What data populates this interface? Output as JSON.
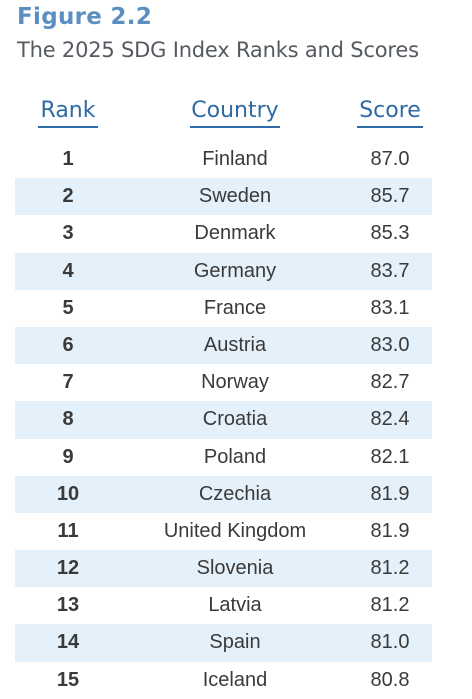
{
  "figure": {
    "label": "Figure 2.2",
    "title": "The 2025 SDG Index Ranks and Scores"
  },
  "table": {
    "headers": {
      "rank": "Rank",
      "country": "Country",
      "score": "Score"
    },
    "rows": [
      {
        "rank": "1",
        "country": "Finland",
        "score": "87.0"
      },
      {
        "rank": "2",
        "country": "Sweden",
        "score": "85.7"
      },
      {
        "rank": "3",
        "country": "Denmark",
        "score": "85.3"
      },
      {
        "rank": "4",
        "country": "Germany",
        "score": "83.7"
      },
      {
        "rank": "5",
        "country": "France",
        "score": "83.1"
      },
      {
        "rank": "6",
        "country": "Austria",
        "score": "83.0"
      },
      {
        "rank": "7",
        "country": "Norway",
        "score": "82.7"
      },
      {
        "rank": "8",
        "country": "Croatia",
        "score": "82.4"
      },
      {
        "rank": "9",
        "country": "Poland",
        "score": "82.1"
      },
      {
        "rank": "10",
        "country": "Czechia",
        "score": "81.9"
      },
      {
        "rank": "11",
        "country": "United Kingdom",
        "score": "81.9"
      },
      {
        "rank": "12",
        "country": "Slovenia",
        "score": "81.2"
      },
      {
        "rank": "13",
        "country": "Latvia",
        "score": "81.2"
      },
      {
        "rank": "14",
        "country": "Spain",
        "score": "81.0"
      },
      {
        "rank": "15",
        "country": "Iceland",
        "score": "80.8"
      }
    ]
  },
  "colors": {
    "label": "#5a8fc0",
    "header": "#2e6aa3",
    "row_shade": "#e4f1fa",
    "text": "#3a3a3a"
  }
}
